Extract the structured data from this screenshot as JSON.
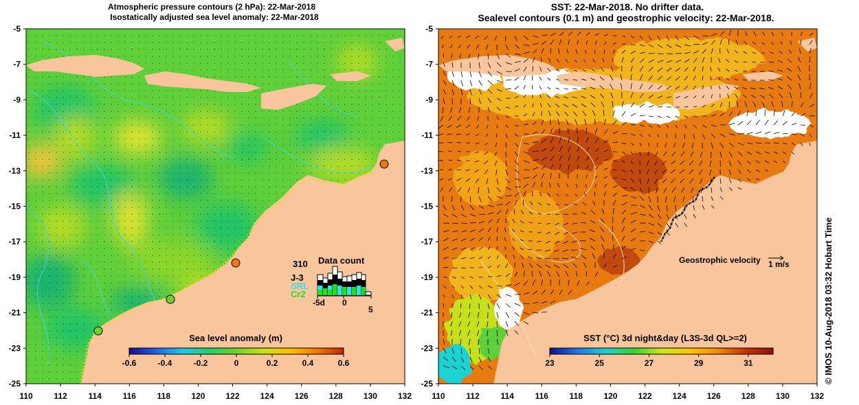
{
  "left_panel": {
    "title_line1": "Atmospheric pressure contours (2 hPa): 22-Mar-2018",
    "title_line2": "Isostatically adjusted sea level anomaly: 22-Mar-2018",
    "colorbar_title": "Sea level anomaly (m)",
    "colorbar_ticks": [
      "-0.6",
      "-0.4",
      "-0.2",
      "0",
      "0.2",
      "0.4",
      "0.6"
    ],
    "colorbar_colors": [
      "#1a0a8c",
      "#1f63e6",
      "#1fc8e6",
      "#1fcf6a",
      "#6fd12a",
      "#c8e01e",
      "#ffc000",
      "#f07a00",
      "#c02800"
    ],
    "datacount": {
      "title": "Data count",
      "max_label": "310",
      "series": [
        {
          "name": "J-3",
          "color": "#000000"
        },
        {
          "name": "SRL",
          "color": "#34e0e0"
        },
        {
          "name": "Cr2",
          "color": "#22dd22"
        }
      ],
      "x_ticks": [
        "-5d",
        "0",
        "5"
      ]
    }
  },
  "right_panel": {
    "title_line1": "SST: 22-Mar-2018. No drifter data.",
    "title_line2": "Sealevel contours (0.1 m) and geostrophic velocity: 22-Mar-2018.",
    "colorbar_title": "SST (°C) 3d night&day (L3S-3d QL>=2)",
    "colorbar_ticks": [
      "23",
      "25",
      "27",
      "29",
      "31"
    ],
    "colorbar_colors": [
      "#10108c",
      "#1e78e6",
      "#1ed2d2",
      "#32d232",
      "#c8e61e",
      "#ffc800",
      "#f08c00",
      "#c83200",
      "#8c1400"
    ],
    "velocity_label": "Geostrophic velocity",
    "velocity_unit": "1 m/s"
  },
  "axes": {
    "x_ticks": [
      "110",
      "112",
      "114",
      "116",
      "118",
      "120",
      "122",
      "124",
      "126",
      "128",
      "130",
      "132"
    ],
    "y_ticks": [
      "-5",
      "-7",
      "-9",
      "-11",
      "-13",
      "-15",
      "-17",
      "-19",
      "-21",
      "-23",
      "-25"
    ]
  },
  "credit": "© IMOS 10-Aug-2018 03:32 Hobart Time",
  "chart_data": [
    {
      "type": "heatmap",
      "title": "Atmospheric pressure contours (2 hPa): 22-Mar-2018 / Isostatically adjusted sea level anomaly: 22-Mar-2018",
      "variable": "Sea level anomaly (m)",
      "xlim": [
        110,
        132
      ],
      "ylim": [
        -25,
        -5
      ],
      "colorbar_range": [
        -0.6,
        0.6
      ],
      "tide_gauges": [
        {
          "lon": 130.9,
          "lat": -12.65,
          "color": "#f07a00"
        },
        {
          "lon": 122.2,
          "lat": -18.15,
          "color": "#f07a00"
        },
        {
          "lon": 118.4,
          "lat": -20.3,
          "color": "#6fd12a"
        },
        {
          "lon": 114.2,
          "lat": -22.0,
          "color": "#6fd12a"
        }
      ]
    },
    {
      "type": "heatmap",
      "title": "SST: 22-Mar-2018. No drifter data. / Sealevel contours (0.1 m) and geostrophic velocity: 22-Mar-2018.",
      "variable": "SST (°C) 3d night&day (L3S-3d QL>=2)",
      "xlim": [
        110,
        132
      ],
      "ylim": [
        -25,
        -5
      ],
      "colorbar_range": [
        23,
        32
      ]
    }
  ]
}
